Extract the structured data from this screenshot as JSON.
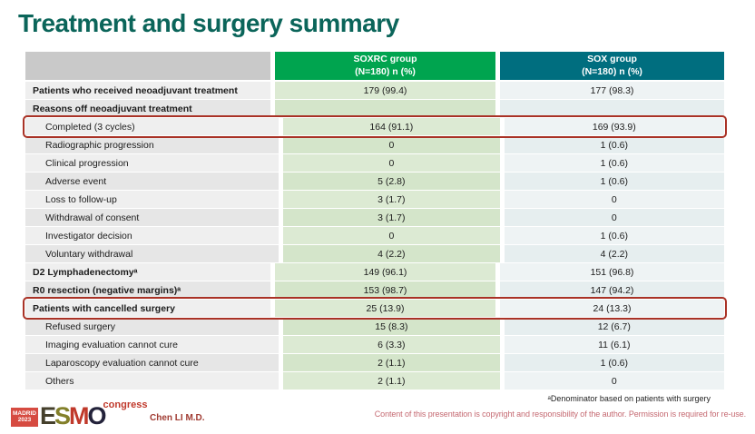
{
  "slide": {
    "title": "Treatment and surgery summary"
  },
  "table": {
    "columns": [
      {
        "name": "SOXRC group",
        "sub": "(N=180) n (%)"
      },
      {
        "name": "SOX group",
        "sub": "(N=180) n (%)"
      }
    ],
    "rows": [
      {
        "label": "Patients who received neoadjuvant treatment",
        "soxrc": "179 (99.4)",
        "sox": "177 (98.3)"
      },
      {
        "label": "Reasons off neoadjuvant treatment",
        "soxrc": "",
        "sox": ""
      },
      {
        "label": "Completed (3 cycles)",
        "soxrc": "164 (91.1)",
        "sox": "169 (93.9)"
      },
      {
        "label": "Radiographic progression",
        "soxrc": "0",
        "sox": "1 (0.6)"
      },
      {
        "label": "Clinical progression",
        "soxrc": "0",
        "sox": "1 (0.6)"
      },
      {
        "label": "Adverse event",
        "soxrc": "5 (2.8)",
        "sox": "1 (0.6)"
      },
      {
        "label": "Loss to follow-up",
        "soxrc": "3 (1.7)",
        "sox": "0"
      },
      {
        "label": "Withdrawal of consent",
        "soxrc": "3 (1.7)",
        "sox": "0"
      },
      {
        "label": "Investigator decision",
        "soxrc": "0",
        "sox": "1 (0.6)"
      },
      {
        "label": "Voluntary withdrawal",
        "soxrc": "4 (2.2)",
        "sox": "4 (2.2)"
      },
      {
        "label": "D2 Lymphadenectomyᵃ",
        "soxrc": "149 (96.1)",
        "sox": "151 (96.8)"
      },
      {
        "label": "R0 resection (negative margins)ᵃ",
        "soxrc": "153 (98.7)",
        "sox": "147 (94.2)"
      },
      {
        "label": "Patients with cancelled surgery",
        "soxrc": "25 (13.9)",
        "sox": "24 (13.3)"
      },
      {
        "label": "Refused surgery",
        "soxrc": "15 (8.3)",
        "sox": "12 (6.7)"
      },
      {
        "label": "Imaging evaluation cannot cure",
        "soxrc": "6 (3.3)",
        "sox": "11 (6.1)"
      },
      {
        "label": "Laparoscopy evaluation cannot cure",
        "soxrc": "2 (1.1)",
        "sox": "1 (0.6)"
      },
      {
        "label": "Others",
        "soxrc": "2 (1.1)",
        "sox": "0"
      }
    ]
  },
  "footnotes": {
    "denominator": "ᵃDenominator based on patients with surgery",
    "copyright": "Content of this presentation is copyright and responsibility of the author. Permission is required for re-use."
  },
  "footer": {
    "author": "Chen LI M.D.",
    "logo": {
      "city": "MADRID",
      "year": "2023",
      "brand_letters": [
        "E",
        "S",
        "M",
        "O"
      ],
      "congress": "congress"
    }
  },
  "colors": {
    "title_text": "#0b655a",
    "header_soxrc": "#00a44f",
    "header_sox": "#006e7f",
    "highlight": "#a93226",
    "copyright": "#c56a72",
    "author": "#a03b32",
    "congress_red": "#c0392b",
    "logo_box": "#d64b41"
  }
}
